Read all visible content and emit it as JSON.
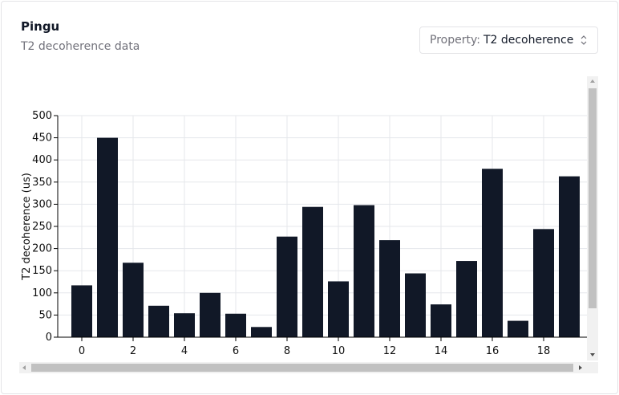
{
  "header": {
    "title": "Pingu",
    "subtitle": "T2 decoherence data"
  },
  "property_select": {
    "label": "Property:",
    "value": "T2 decoherence"
  },
  "colors": {
    "bar": "#111827",
    "grid": "#e5e7eb",
    "axis": "#000000"
  },
  "chart_data": {
    "type": "bar",
    "categories": [
      0,
      1,
      2,
      3,
      4,
      5,
      6,
      7,
      8,
      9,
      10,
      11,
      12,
      13,
      14,
      15,
      16,
      17,
      18,
      19
    ],
    "values": [
      117,
      450,
      168,
      71,
      54,
      100,
      53,
      23,
      227,
      294,
      126,
      298,
      219,
      144,
      74,
      172,
      380,
      37,
      244,
      363
    ],
    "xticks": [
      0,
      2,
      4,
      6,
      8,
      10,
      12,
      14,
      16,
      18
    ],
    "yticks": [
      0,
      50,
      100,
      150,
      200,
      250,
      300,
      350,
      400,
      450,
      500
    ],
    "ylabel": "T2 decoherence (us)",
    "xlabel": "",
    "ylim": [
      0,
      500
    ],
    "grid": true
  }
}
